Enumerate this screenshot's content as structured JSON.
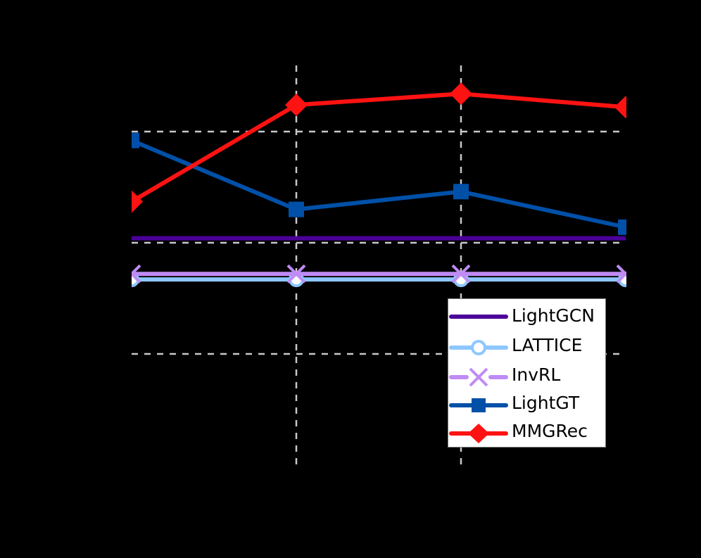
{
  "chart_data": {
    "type": "line",
    "title": "",
    "xlabel": "",
    "ylabel": "",
    "x": [
      1,
      2,
      3,
      4
    ],
    "x_tick_labels": [],
    "y_tick_labels": [],
    "ylim": [
      -1.0,
      2.6
    ],
    "grid": true,
    "grid_style": "dashed",
    "legend_position": "lower right",
    "note": "Axes, tick labels and axis titles are rendered black on black background (not visible); y values are in relative units where the three visible horizontal gridlines correspond to 0, 1 and 2.",
    "series": [
      {
        "name": "LightGCN",
        "color": "#4B0099",
        "marker": "none",
        "values": [
          1.04,
          1.04,
          1.04,
          1.04
        ]
      },
      {
        "name": "LATTICE",
        "color": "#8EC7FF",
        "marker": "circle-open",
        "values": [
          0.67,
          0.67,
          0.67,
          0.67
        ]
      },
      {
        "name": "InvRL",
        "color": "#C08BF5",
        "marker": "x",
        "values": [
          0.72,
          0.72,
          0.72,
          0.72
        ]
      },
      {
        "name": "LightGT",
        "color": "#0050A8",
        "marker": "square",
        "values": [
          1.92,
          1.3,
          1.46,
          1.14
        ]
      },
      {
        "name": "MMGRec",
        "color": "#FF1212",
        "marker": "diamond",
        "values": [
          1.37,
          2.24,
          2.34,
          2.22
        ]
      }
    ]
  },
  "legend": {
    "items": [
      {
        "label": "LightGCN"
      },
      {
        "label": "LATTICE"
      },
      {
        "label": "InvRL"
      },
      {
        "label": "LightGT"
      },
      {
        "label": "MMGRec"
      }
    ]
  }
}
